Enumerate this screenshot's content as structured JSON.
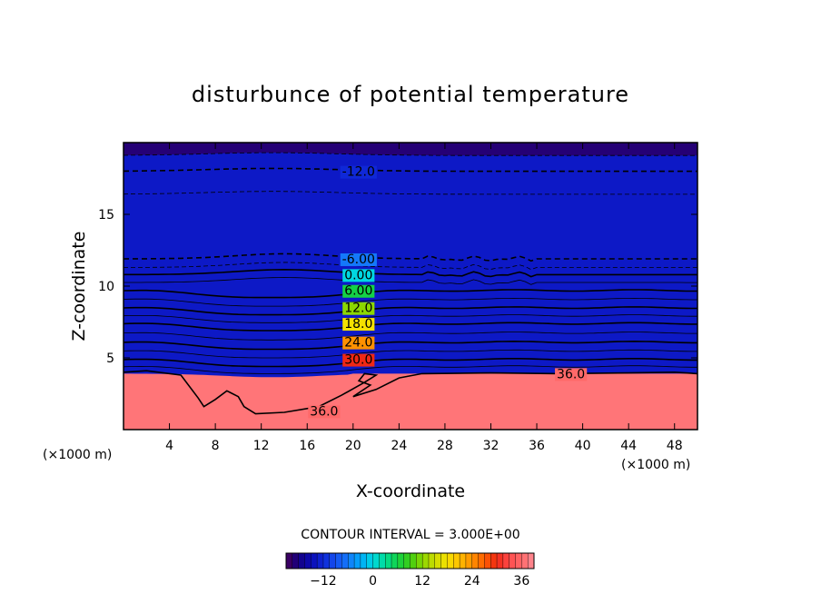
{
  "chart_data": {
    "type": "heatmap",
    "title": "disturbunce of potential temperature",
    "xlabel": "X-coordinate",
    "ylabel": "Z-coordinate",
    "x_unit_label_left": "(×1000 m)",
    "x_unit_label_right": "(×1000 m)",
    "xlim": [
      0,
      50
    ],
    "ylim": [
      0,
      20
    ],
    "x_ticks": [
      4,
      8,
      12,
      16,
      20,
      24,
      28,
      32,
      36,
      40,
      44,
      48
    ],
    "y_ticks": [
      5,
      10,
      15
    ],
    "x_tick_labels": [
      "4",
      "8",
      "12",
      "16",
      "20",
      "24",
      "28",
      "32",
      "36",
      "40",
      "44",
      "48"
    ],
    "y_tick_labels": [
      "5",
      "10",
      "15"
    ],
    "contour_interval_text": "CONTOUR INTERVAL = 3.000E+00",
    "contour_interval": 3.0,
    "colorbar": {
      "min": -21,
      "max": 39,
      "ticks": [
        -12,
        0,
        12,
        24,
        36
      ],
      "tick_labels": [
        "−12",
        "0",
        "12",
        "24",
        "36"
      ]
    },
    "contour_labels": [
      {
        "text": "-12.0",
        "x": 20,
        "z": 18.0
      },
      {
        "text": "-6.00",
        "x": 20,
        "z": 11.9
      },
      {
        "text": "0.00",
        "x": 20,
        "z": 10.8
      },
      {
        "text": "6.00",
        "x": 20,
        "z": 9.7
      },
      {
        "text": "12.0",
        "x": 20,
        "z": 8.5
      },
      {
        "text": "18.0",
        "x": 20,
        "z": 7.4
      },
      {
        "text": "24.0",
        "x": 20,
        "z": 6.1
      },
      {
        "text": "30.0",
        "x": 20,
        "z": 4.9
      },
      {
        "text": "36.0",
        "x": 38.5,
        "z": 3.9
      },
      {
        "text": "36.0",
        "x": 17,
        "z": 1.3
      }
    ],
    "grid": false
  }
}
